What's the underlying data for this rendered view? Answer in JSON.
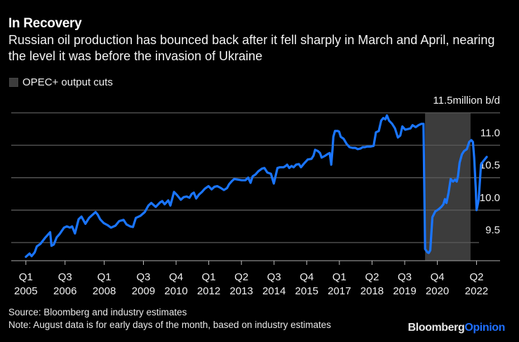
{
  "header": {
    "title": "In Recovery",
    "subtitle": "Russian oil production has bounced back after it fell sharply in March and April, nearing the level it was before the invasion of Ukraine"
  },
  "legend": {
    "items": [
      {
        "label": "OPEC+ output cuts",
        "color": "#3c3c3c"
      }
    ]
  },
  "footer": {
    "source": "Source: Bloomberg and industry estimates",
    "note": "Note: August data is for early days of the month, based on industry estimates",
    "brand_primary": "Bloomberg",
    "brand_secondary": "Opinion"
  },
  "colors": {
    "line": "#1a75ff",
    "band": "#3c3c3c",
    "grid": "#5a5a5a",
    "background": "#000000"
  },
  "chart_data": {
    "type": "line",
    "title": "In Recovery",
    "subtitle": "Russian oil production has bounced back after it fell sharply in March and April, nearing the level it was before the invasion of Ukraine",
    "xlabel": "",
    "ylabel": "million b/d",
    "y_unit_label": "million b/d",
    "ylim": [
      9.22,
      11.5
    ],
    "xlim": [
      2004.44,
      2023.15
    ],
    "grid": true,
    "y_ticks": [
      {
        "value": 11.5,
        "label": "11.5"
      },
      {
        "value": 11.0,
        "label": "11.0"
      },
      {
        "value": 10.5,
        "label": "10.5"
      },
      {
        "value": 10.0,
        "label": "10.0"
      },
      {
        "value": 9.5,
        "label": "9.5"
      }
    ],
    "x_ticks": [
      {
        "value": 2005.0,
        "label": [
          "Q1",
          "2005"
        ]
      },
      {
        "value": 2006.5,
        "label": [
          "Q3",
          "2006"
        ]
      },
      {
        "value": 2008.0,
        "label": [
          "Q1",
          "2008"
        ]
      },
      {
        "value": 2009.5,
        "label": [
          "Q3",
          "2009"
        ]
      },
      {
        "value": 2010.75,
        "label": [
          "Q4",
          "2010"
        ]
      },
      {
        "value": 2012.0,
        "label": [
          "Q1",
          "2012"
        ]
      },
      {
        "value": 2013.25,
        "label": [
          "Q2",
          "2013"
        ]
      },
      {
        "value": 2014.5,
        "label": [
          "Q3",
          "2014"
        ]
      },
      {
        "value": 2015.75,
        "label": [
          "Q4",
          "2015"
        ]
      },
      {
        "value": 2017.0,
        "label": [
          "Q1",
          "2017"
        ]
      },
      {
        "value": 2018.25,
        "label": [
          "Q2",
          "2018"
        ]
      },
      {
        "value": 2019.5,
        "label": [
          "Q3",
          "2019"
        ]
      },
      {
        "value": 2020.75,
        "label": [
          "Q4",
          "2020"
        ]
      },
      {
        "value": 2022.25,
        "label": [
          "Q2",
          "2022"
        ]
      }
    ],
    "legend": "top-left",
    "bands": [
      {
        "name": "OPEC+ output cuts",
        "start": 2020.28,
        "end": 2022.02
      }
    ],
    "series": [
      {
        "name": "Russian oil production (million b/d)",
        "points": [
          [
            2005.0,
            9.28
          ],
          [
            2005.14,
            9.33
          ],
          [
            2005.22,
            9.29
          ],
          [
            2005.34,
            9.35
          ],
          [
            2005.42,
            9.44
          ],
          [
            2005.56,
            9.48
          ],
          [
            2005.73,
            9.57
          ],
          [
            2005.93,
            9.66
          ],
          [
            2005.98,
            9.45
          ],
          [
            2006.07,
            9.47
          ],
          [
            2006.18,
            9.58
          ],
          [
            2006.29,
            9.63
          ],
          [
            2006.46,
            9.73
          ],
          [
            2006.57,
            9.75
          ],
          [
            2006.69,
            9.73
          ],
          [
            2006.77,
            9.75
          ],
          [
            2006.88,
            9.64
          ],
          [
            2007.02,
            9.86
          ],
          [
            2007.13,
            9.9
          ],
          [
            2007.28,
            9.79
          ],
          [
            2007.42,
            9.88
          ],
          [
            2007.53,
            9.92
          ],
          [
            2007.67,
            9.97
          ],
          [
            2007.75,
            9.93
          ],
          [
            2007.84,
            9.86
          ],
          [
            2007.98,
            9.8
          ],
          [
            2008.12,
            9.77
          ],
          [
            2008.26,
            9.73
          ],
          [
            2008.43,
            9.76
          ],
          [
            2008.57,
            9.83
          ],
          [
            2008.74,
            9.85
          ],
          [
            2008.85,
            9.78
          ],
          [
            2008.99,
            9.75
          ],
          [
            2009.1,
            9.74
          ],
          [
            2009.21,
            9.88
          ],
          [
            2009.38,
            9.91
          ],
          [
            2009.55,
            9.97
          ],
          [
            2009.69,
            10.07
          ],
          [
            2009.8,
            10.11
          ],
          [
            2009.97,
            10.05
          ],
          [
            2010.14,
            10.12
          ],
          [
            2010.22,
            10.14
          ],
          [
            2010.31,
            10.09
          ],
          [
            2010.45,
            10.15
          ],
          [
            2010.53,
            10.07
          ],
          [
            2010.67,
            10.28
          ],
          [
            2010.79,
            10.23
          ],
          [
            2010.93,
            10.16
          ],
          [
            2011.04,
            10.2
          ],
          [
            2011.15,
            10.21
          ],
          [
            2011.26,
            10.19
          ],
          [
            2011.35,
            10.25
          ],
          [
            2011.43,
            10.27
          ],
          [
            2011.52,
            10.18
          ],
          [
            2011.63,
            10.24
          ],
          [
            2011.74,
            10.28
          ],
          [
            2011.85,
            10.33
          ],
          [
            2011.99,
            10.37
          ],
          [
            2012.11,
            10.32
          ],
          [
            2012.22,
            10.36
          ],
          [
            2012.33,
            10.37
          ],
          [
            2012.47,
            10.34
          ],
          [
            2012.58,
            10.31
          ],
          [
            2012.7,
            10.34
          ],
          [
            2012.78,
            10.4
          ],
          [
            2012.89,
            10.45
          ],
          [
            2012.98,
            10.48
          ],
          [
            2013.12,
            10.47
          ],
          [
            2013.26,
            10.46
          ],
          [
            2013.4,
            10.46
          ],
          [
            2013.51,
            10.5
          ],
          [
            2013.6,
            10.42
          ],
          [
            2013.68,
            10.52
          ],
          [
            2013.79,
            10.55
          ],
          [
            2013.9,
            10.6
          ],
          [
            2014.04,
            10.64
          ],
          [
            2014.13,
            10.65
          ],
          [
            2014.24,
            10.58
          ],
          [
            2014.38,
            10.56
          ],
          [
            2014.49,
            10.41
          ],
          [
            2014.63,
            10.65
          ],
          [
            2014.72,
            10.66
          ],
          [
            2014.86,
            10.66
          ],
          [
            2014.94,
            10.68
          ],
          [
            2015.0,
            10.7
          ],
          [
            2015.08,
            10.65
          ],
          [
            2015.17,
            10.68
          ],
          [
            2015.25,
            10.66
          ],
          [
            2015.34,
            10.7
          ],
          [
            2015.45,
            10.71
          ],
          [
            2015.53,
            10.66
          ],
          [
            2015.65,
            10.72
          ],
          [
            2015.79,
            10.78
          ],
          [
            2015.93,
            10.79
          ],
          [
            2016.01,
            10.84
          ],
          [
            2016.07,
            10.93
          ],
          [
            2016.18,
            10.91
          ],
          [
            2016.26,
            10.88
          ],
          [
            2016.32,
            10.81
          ],
          [
            2016.46,
            10.84
          ],
          [
            2016.57,
            10.87
          ],
          [
            2016.63,
            10.88
          ],
          [
            2016.69,
            10.7
          ],
          [
            2016.74,
            10.95
          ],
          [
            2016.77,
            11.13
          ],
          [
            2016.83,
            11.22
          ],
          [
            2016.94,
            11.22
          ],
          [
            2016.99,
            11.21
          ],
          [
            2017.05,
            11.13
          ],
          [
            2017.16,
            11.1
          ],
          [
            2017.28,
            11.02
          ],
          [
            2017.39,
            10.97
          ],
          [
            2017.5,
            10.96
          ],
          [
            2017.61,
            10.96
          ],
          [
            2017.7,
            10.94
          ],
          [
            2017.81,
            10.95
          ],
          [
            2017.89,
            10.97
          ],
          [
            2017.98,
            10.97
          ],
          [
            2018.06,
            10.98
          ],
          [
            2018.2,
            10.98
          ],
          [
            2018.31,
            10.99
          ],
          [
            2018.4,
            11.2
          ],
          [
            2018.51,
            11.22
          ],
          [
            2018.6,
            11.38
          ],
          [
            2018.68,
            11.42
          ],
          [
            2018.76,
            11.4
          ],
          [
            2018.82,
            11.46
          ],
          [
            2018.9,
            11.38
          ],
          [
            2019.02,
            11.33
          ],
          [
            2019.13,
            11.26
          ],
          [
            2019.24,
            11.12
          ],
          [
            2019.33,
            11.15
          ],
          [
            2019.41,
            11.29
          ],
          [
            2019.52,
            11.24
          ],
          [
            2019.63,
            11.25
          ],
          [
            2019.72,
            11.26
          ],
          [
            2019.8,
            11.31
          ],
          [
            2019.92,
            11.28
          ],
          [
            2020.03,
            11.31
          ],
          [
            2020.14,
            11.33
          ],
          [
            2020.22,
            11.33
          ],
          [
            2020.28,
            9.4
          ],
          [
            2020.37,
            9.35
          ],
          [
            2020.42,
            9.34
          ],
          [
            2020.48,
            9.38
          ],
          [
            2020.56,
            9.89
          ],
          [
            2020.67,
            9.98
          ],
          [
            2020.79,
            10.01
          ],
          [
            2020.9,
            10.05
          ],
          [
            2020.98,
            10.09
          ],
          [
            2021.04,
            10.17
          ],
          [
            2021.1,
            10.11
          ],
          [
            2021.18,
            10.27
          ],
          [
            2021.26,
            10.48
          ],
          [
            2021.35,
            10.44
          ],
          [
            2021.43,
            10.47
          ],
          [
            2021.49,
            10.44
          ],
          [
            2021.54,
            10.52
          ],
          [
            2021.6,
            10.73
          ],
          [
            2021.69,
            10.86
          ],
          [
            2021.77,
            10.91
          ],
          [
            2021.88,
            10.94
          ],
          [
            2021.97,
            11.05
          ],
          [
            2022.05,
            11.08
          ],
          [
            2022.11,
            11.05
          ],
          [
            2022.16,
            10.81
          ],
          [
            2022.22,
            10.32
          ],
          [
            2022.25,
            10.0
          ],
          [
            2022.33,
            10.16
          ],
          [
            2022.42,
            10.7
          ],
          [
            2022.5,
            10.75
          ],
          [
            2022.64,
            10.82
          ]
        ]
      }
    ]
  }
}
